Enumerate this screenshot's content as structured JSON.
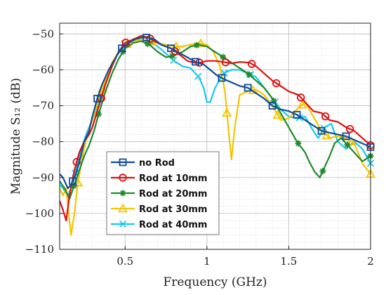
{
  "chart_data": {
    "type": "line",
    "xlabel": "Frequency (GHz)",
    "ylabel": "Magnitude S₁₂ (dB)",
    "xlim": [
      0.1,
      2.0
    ],
    "ylim": [
      -110,
      -47
    ],
    "xticks": [
      0.5,
      1,
      1.5,
      2
    ],
    "xtick_labels": [
      "0.5",
      "1",
      "1.5",
      "2"
    ],
    "yticks": [
      -110,
      -100,
      -90,
      -80,
      -70,
      -60,
      -50
    ],
    "grid": true,
    "minor_grid": true,
    "legend_position": "bottom-left",
    "series": [
      {
        "name": "no Rod",
        "color": "#0f4c96",
        "marker": "square",
        "x": [
          0.1,
          0.12,
          0.15,
          0.17,
          0.2,
          0.23,
          0.25,
          0.28,
          0.3,
          0.33,
          0.36,
          0.4,
          0.45,
          0.48,
          0.52,
          0.56,
          0.6,
          0.64,
          0.68,
          0.72,
          0.78,
          0.84,
          0.9,
          0.94,
          0.98,
          1.02,
          1.06,
          1.1,
          1.15,
          1.2,
          1.25,
          1.3,
          1.35,
          1.4,
          1.45,
          1.5,
          1.55,
          1.6,
          1.65,
          1.7,
          1.75,
          1.8,
          1.85,
          1.9,
          1.95,
          2.0
        ],
        "y": [
          -89,
          -90,
          -93,
          -92,
          -89,
          -84,
          -80,
          -77,
          -73,
          -68,
          -64,
          -60,
          -56,
          -54,
          -52.5,
          -51.5,
          -51,
          -51,
          -51.5,
          -53,
          -54,
          -55.5,
          -57,
          -58,
          -58.5,
          -60,
          -61.5,
          -62.5,
          -63.5,
          -64.5,
          -65,
          -66.5,
          -68,
          -70,
          -71,
          -71.5,
          -72.5,
          -74,
          -75.5,
          -77,
          -77.5,
          -78,
          -78.5,
          -79.5,
          -80.5,
          -81.5
        ]
      },
      {
        "name": "Rod at 10mm",
        "color": "#e01010",
        "marker": "circle",
        "x": [
          0.1,
          0.12,
          0.14,
          0.16,
          0.19,
          0.22,
          0.25,
          0.28,
          0.3,
          0.34,
          0.38,
          0.42,
          0.46,
          0.5,
          0.55,
          0.6,
          0.64,
          0.68,
          0.72,
          0.78,
          0.84,
          0.88,
          0.92,
          0.96,
          1.0,
          1.05,
          1.1,
          1.15,
          1.2,
          1.26,
          1.3,
          1.35,
          1.4,
          1.45,
          1.5,
          1.56,
          1.6,
          1.65,
          1.7,
          1.75,
          1.8,
          1.85,
          1.9,
          1.95,
          2.0
        ],
        "y": [
          -96.5,
          -99,
          -102,
          -95,
          -88,
          -83,
          -80,
          -78,
          -76,
          -70,
          -64,
          -59,
          -55,
          -52.5,
          -51.5,
          -50.5,
          -51,
          -52,
          -53,
          -54,
          -56,
          -57.5,
          -58,
          -58,
          -57.5,
          -57.5,
          -57.8,
          -58.2,
          -57.8,
          -58,
          -59,
          -61,
          -63,
          -64.5,
          -66,
          -67,
          -69,
          -71.5,
          -72,
          -74,
          -74.5,
          -76,
          -77,
          -79,
          -81
        ]
      },
      {
        "name": "Rod at 20mm",
        "color": "#1d8a2b",
        "marker": "star",
        "x": [
          0.1,
          0.13,
          0.16,
          0.19,
          0.22,
          0.25,
          0.28,
          0.31,
          0.34,
          0.38,
          0.42,
          0.46,
          0.5,
          0.55,
          0.6,
          0.65,
          0.7,
          0.75,
          0.8,
          0.85,
          0.9,
          0.95,
          1.0,
          1.05,
          1.1,
          1.15,
          1.2,
          1.25,
          1.3,
          1.35,
          1.4,
          1.45,
          1.5,
          1.55,
          1.6,
          1.63,
          1.66,
          1.69,
          1.72,
          1.75,
          1.78,
          1.82,
          1.86,
          1.9,
          1.95,
          2.0
        ],
        "y": [
          -91,
          -93,
          -96,
          -92,
          -88,
          -84,
          -81,
          -77,
          -72,
          -66,
          -61,
          -57,
          -54,
          -52.5,
          -52,
          -53,
          -55,
          -56.5,
          -56,
          -55,
          -53.5,
          -53,
          -53.5,
          -55,
          -56.5,
          -58,
          -59.5,
          -61,
          -63,
          -65,
          -68,
          -72,
          -76,
          -80,
          -83,
          -86,
          -88.5,
          -90,
          -87,
          -84,
          -80.5,
          -79,
          -81,
          -83,
          -85.5,
          -84
        ]
      },
      {
        "name": "Rod at 30mm",
        "color": "#f5c400",
        "marker": "triangle",
        "x": [
          0.1,
          0.12,
          0.14,
          0.16,
          0.17,
          0.19,
          0.21,
          0.24,
          0.27,
          0.3,
          0.34,
          0.38,
          0.42,
          0.46,
          0.5,
          0.55,
          0.6,
          0.65,
          0.7,
          0.75,
          0.8,
          0.85,
          0.9,
          0.95,
          1.0,
          1.04,
          1.08,
          1.11,
          1.13,
          1.15,
          1.17,
          1.2,
          1.25,
          1.3,
          1.35,
          1.4,
          1.45,
          1.5,
          1.55,
          1.6,
          1.65,
          1.7,
          1.75,
          1.8,
          1.85,
          1.9,
          1.95,
          2.0
        ],
        "y": [
          -93,
          -95,
          -93,
          -102,
          -106,
          -100,
          -92,
          -84,
          -78,
          -74,
          -68,
          -63,
          -58,
          -55,
          -53,
          -52,
          -51.5,
          -52,
          -52.5,
          -53,
          -53.5,
          -53.5,
          -53,
          -52.5,
          -53,
          -55,
          -59,
          -66,
          -76,
          -85,
          -76,
          -67,
          -66,
          -65.5,
          -67,
          -70,
          -74,
          -73.5,
          -71,
          -69,
          -73,
          -77,
          -79,
          -78.5,
          -79,
          -80.5,
          -86,
          -89
        ]
      },
      {
        "name": "Rod at 40mm",
        "color": "#19c8f0",
        "marker": "x",
        "x": [
          0.1,
          0.12,
          0.15,
          0.18,
          0.21,
          0.24,
          0.27,
          0.3,
          0.34,
          0.38,
          0.42,
          0.46,
          0.5,
          0.55,
          0.6,
          0.65,
          0.7,
          0.75,
          0.8,
          0.85,
          0.9,
          0.95,
          0.98,
          1.0,
          1.02,
          1.05,
          1.1,
          1.15,
          1.2,
          1.25,
          1.3,
          1.35,
          1.4,
          1.45,
          1.5,
          1.55,
          1.6,
          1.65,
          1.68,
          1.72,
          1.76,
          1.8,
          1.85,
          1.9,
          1.95,
          2.0
        ],
        "y": [
          -92,
          -93,
          -95,
          -92,
          -86,
          -81,
          -77,
          -74,
          -69,
          -64,
          -59,
          -55,
          -52.5,
          -51.5,
          -51.5,
          -52,
          -53.5,
          -55.5,
          -57.5,
          -59,
          -59.5,
          -62,
          -65,
          -69,
          -69,
          -65,
          -61,
          -60,
          -60,
          -61,
          -62,
          -65,
          -68,
          -71,
          -73,
          -73.5,
          -73,
          -77,
          -79,
          -76,
          -75,
          -80,
          -82,
          -80,
          -82,
          -86
        ]
      }
    ]
  }
}
